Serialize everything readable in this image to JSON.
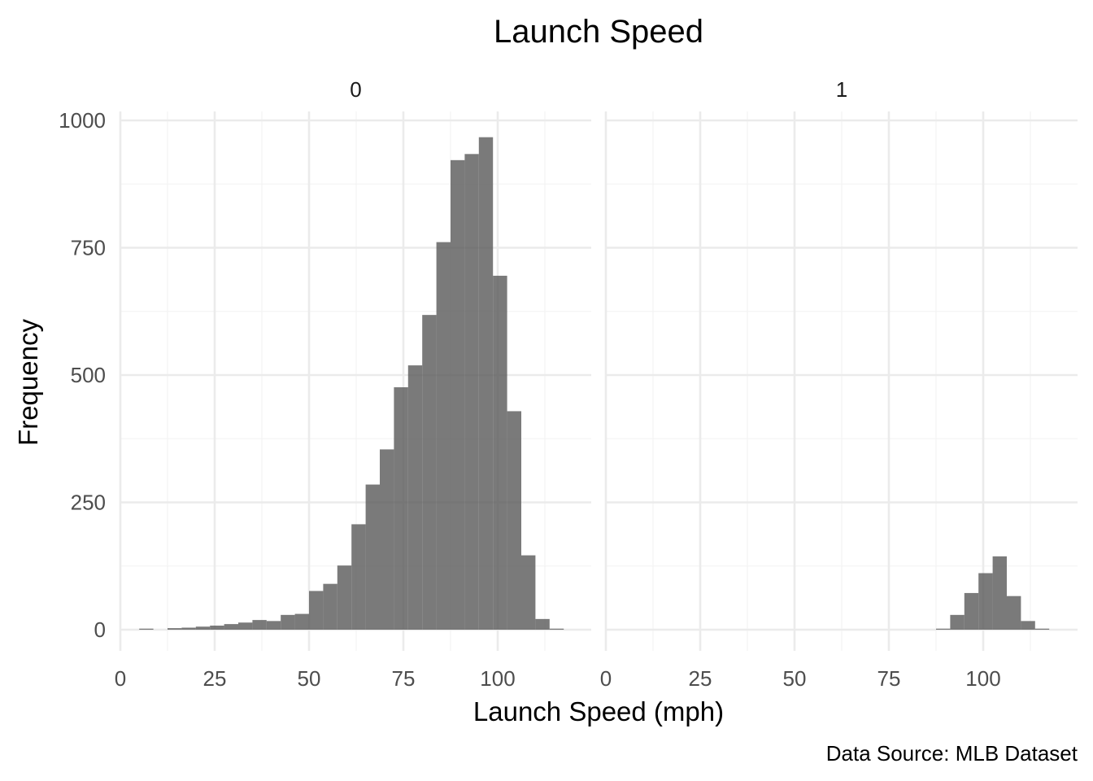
{
  "chart_data": {
    "type": "bar",
    "title": "Launch Speed",
    "xlabel": "Launch Speed (mph)",
    "ylabel": "Frequency",
    "caption": "Data Source: MLB Dataset",
    "grid": true,
    "xlim": [
      0,
      120
    ],
    "ylim": [
      0,
      1000
    ],
    "x_ticks": [
      0,
      25,
      50,
      75,
      100
    ],
    "y_ticks": [
      0,
      250,
      500,
      750,
      1000
    ],
    "bin_width": 3.75,
    "panels": [
      {
        "label": "0",
        "bins": [
          {
            "x0": 5.0,
            "x1": 8.75,
            "value": 2
          },
          {
            "x0": 12.5,
            "x1": 16.25,
            "value": 3
          },
          {
            "x0": 16.25,
            "x1": 20.0,
            "value": 4
          },
          {
            "x0": 20.0,
            "x1": 23.75,
            "value": 6
          },
          {
            "x0": 23.75,
            "x1": 27.5,
            "value": 8
          },
          {
            "x0": 27.5,
            "x1": 31.25,
            "value": 11
          },
          {
            "x0": 31.25,
            "x1": 35.0,
            "value": 14
          },
          {
            "x0": 35.0,
            "x1": 38.75,
            "value": 19
          },
          {
            "x0": 38.75,
            "x1": 42.5,
            "value": 17
          },
          {
            "x0": 42.5,
            "x1": 46.25,
            "value": 29
          },
          {
            "x0": 46.25,
            "x1": 50.0,
            "value": 31
          },
          {
            "x0": 50.0,
            "x1": 53.75,
            "value": 76
          },
          {
            "x0": 53.75,
            "x1": 57.5,
            "value": 90
          },
          {
            "x0": 57.5,
            "x1": 61.25,
            "value": 126
          },
          {
            "x0": 61.25,
            "x1": 65.0,
            "value": 207
          },
          {
            "x0": 65.0,
            "x1": 68.75,
            "value": 285
          },
          {
            "x0": 68.75,
            "x1": 72.5,
            "value": 354
          },
          {
            "x0": 72.5,
            "x1": 76.25,
            "value": 476
          },
          {
            "x0": 76.25,
            "x1": 80.0,
            "value": 519
          },
          {
            "x0": 80.0,
            "x1": 83.75,
            "value": 618
          },
          {
            "x0": 83.75,
            "x1": 87.5,
            "value": 761
          },
          {
            "x0": 87.5,
            "x1": 91.25,
            "value": 922
          },
          {
            "x0": 91.25,
            "x1": 95.0,
            "value": 934
          },
          {
            "x0": 95.0,
            "x1": 98.75,
            "value": 967
          },
          {
            "x0": 98.75,
            "x1": 102.5,
            "value": 695
          },
          {
            "x0": 102.5,
            "x1": 106.25,
            "value": 429
          },
          {
            "x0": 106.25,
            "x1": 110.0,
            "value": 146
          },
          {
            "x0": 110.0,
            "x1": 113.75,
            "value": 21
          },
          {
            "x0": 113.75,
            "x1": 117.5,
            "value": 2
          }
        ]
      },
      {
        "label": "1",
        "bins": [
          {
            "x0": 87.5,
            "x1": 91.25,
            "value": 2
          },
          {
            "x0": 91.25,
            "x1": 95.0,
            "value": 29
          },
          {
            "x0": 95.0,
            "x1": 98.75,
            "value": 72
          },
          {
            "x0": 98.75,
            "x1": 102.5,
            "value": 111
          },
          {
            "x0": 102.5,
            "x1": 106.25,
            "value": 144
          },
          {
            "x0": 106.25,
            "x1": 110.0,
            "value": 66
          },
          {
            "x0": 110.0,
            "x1": 113.75,
            "value": 17
          },
          {
            "x0": 113.75,
            "x1": 117.5,
            "value": 2
          }
        ]
      }
    ]
  }
}
